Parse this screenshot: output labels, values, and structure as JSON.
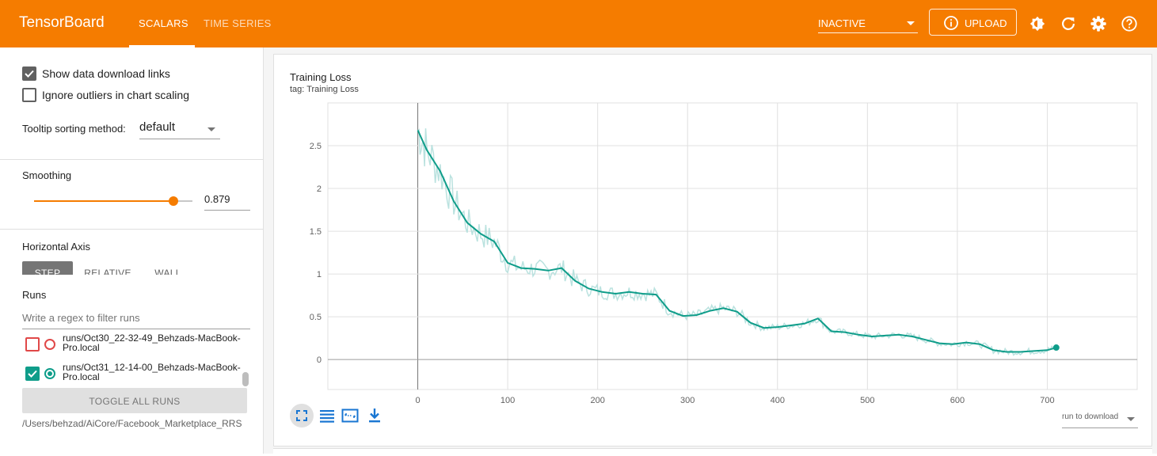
{
  "app": {
    "title": "TensorBoard"
  },
  "tabs": [
    {
      "label": "SCALARS"
    },
    {
      "label": "TIME SERIES"
    }
  ],
  "header": {
    "status": "INACTIVE",
    "upload_label": "UPLOAD"
  },
  "sidebar": {
    "show_download_links": {
      "label": "Show data download links",
      "checked": true
    },
    "ignore_outliers": {
      "label": "Ignore outliers in chart scaling",
      "checked": false
    },
    "tooltip_label": "Tooltip sorting method:",
    "tooltip_value": "default",
    "smoothing_label": "Smoothing",
    "smoothing_value": "0.879",
    "smoothing_fraction": 0.879,
    "horizontal_axis_label": "Horizontal Axis",
    "axis_options": [
      {
        "label": "STEP"
      },
      {
        "label": "RELATIVE"
      },
      {
        "label": "WALL"
      }
    ],
    "runs_label": "Runs",
    "filter_placeholder": "Write a regex to filter runs",
    "runs": [
      {
        "name": "runs/Oct30_22-32-49_Behzads-MacBook-Pro.local",
        "checked": false
      },
      {
        "name": "runs/Oct31_12-14-00_Behzads-MacBook-Pro.local",
        "checked": true
      }
    ],
    "toggle_all_label": "TOGGLE ALL RUNS",
    "logdir": "/Users/behzad/AiCore/Facebook_Marketplace_RRS"
  },
  "card": {
    "title": "Training Loss",
    "tag": "tag: Training Loss",
    "download_select": "run to download"
  },
  "colors": {
    "header": "#f57c00",
    "series": "#0f9d8a",
    "raw": "#b2dfdb"
  },
  "chart_data": {
    "type": "line",
    "title": "Training Loss",
    "xlabel": "",
    "ylabel": "",
    "xlim": [
      -100,
      800
    ],
    "ylim": [
      -0.35,
      3.0
    ],
    "x_ticks": [
      0,
      100,
      200,
      300,
      400,
      500,
      600,
      700
    ],
    "y_ticks": [
      0,
      0.5,
      1,
      1.5,
      2,
      2.5
    ],
    "x_tick_labels": [
      "0",
      "100",
      "200",
      "300",
      "400",
      "500",
      "600",
      "700"
    ],
    "y_tick_labels": [
      "0",
      "0.5",
      "1",
      "1.5",
      "2",
      "2.5"
    ],
    "grid": true,
    "series": [
      {
        "name": "runs/Oct31_12-14-00_Behzads-MacBook-Pro.local",
        "x": [
          0,
          10,
          25,
          40,
          55,
          70,
          85,
          100,
          115,
          130,
          145,
          160,
          175,
          190,
          205,
          220,
          235,
          250,
          265,
          280,
          295,
          310,
          325,
          340,
          355,
          370,
          385,
          400,
          415,
          430,
          445,
          460,
          475,
          490,
          505,
          520,
          535,
          550,
          565,
          580,
          595,
          610,
          625,
          640,
          655,
          670,
          685,
          700,
          710
        ],
        "y": [
          2.68,
          2.45,
          2.2,
          1.85,
          1.6,
          1.47,
          1.38,
          1.13,
          1.07,
          1.06,
          1.04,
          1.07,
          0.92,
          0.83,
          0.79,
          0.77,
          0.79,
          0.77,
          0.76,
          0.57,
          0.51,
          0.52,
          0.57,
          0.6,
          0.56,
          0.43,
          0.37,
          0.38,
          0.4,
          0.42,
          0.48,
          0.33,
          0.32,
          0.29,
          0.27,
          0.28,
          0.29,
          0.27,
          0.23,
          0.19,
          0.18,
          0.2,
          0.18,
          0.11,
          0.09,
          0.09,
          0.1,
          0.11,
          0.14
        ]
      }
    ]
  }
}
